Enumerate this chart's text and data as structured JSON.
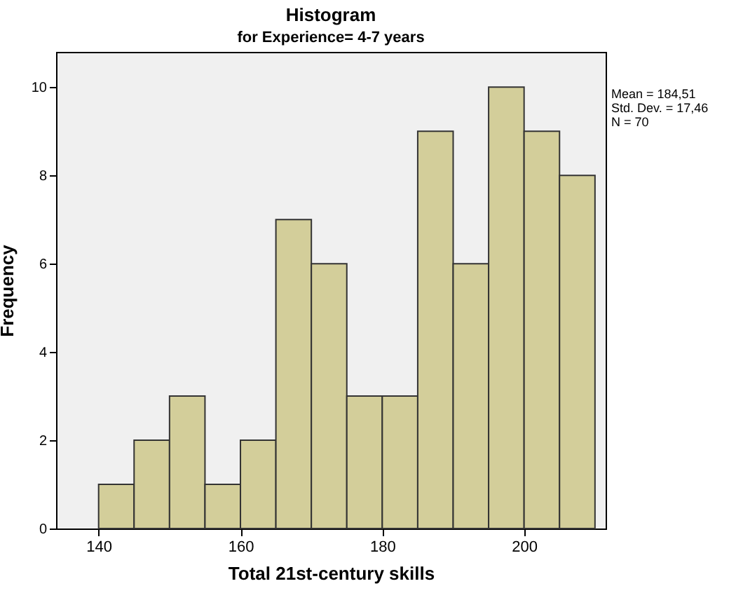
{
  "chart_data": {
    "type": "histogram",
    "title": "Histogram",
    "subtitle": "for Experience= 4-7 years",
    "xlabel": "Total 21st-century skills",
    "ylabel": "Frequency",
    "bins": [
      140,
      145,
      150,
      155,
      160,
      165,
      170,
      175,
      180,
      185,
      190,
      195,
      200,
      205,
      210
    ],
    "values": [
      1,
      2,
      3,
      1,
      2,
      7,
      6,
      3,
      3,
      9,
      6,
      10,
      9,
      8
    ],
    "color": "#d3ce9a",
    "xlim": [
      134,
      211.5
    ],
    "xticks": [
      140,
      160,
      180,
      200
    ],
    "ylim": [
      0,
      10.8
    ],
    "yticks": [
      0,
      2,
      4,
      6,
      8,
      10
    ],
    "annotations": [
      "Mean = 184,51",
      "Std. Dev. = 17,46",
      "N = 70"
    ],
    "grid": false
  }
}
